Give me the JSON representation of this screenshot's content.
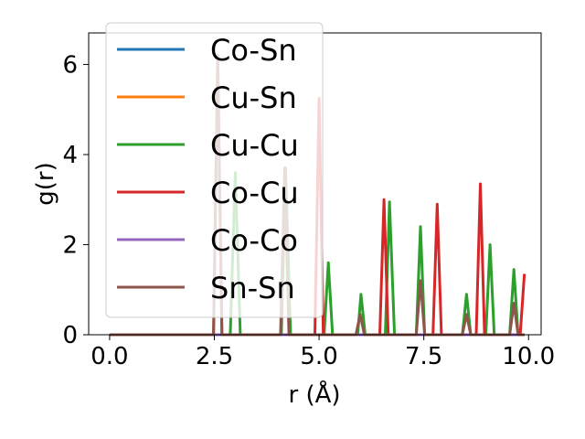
{
  "chart_data": {
    "type": "line",
    "xlabel": "r (Å)",
    "ylabel": "g(r)",
    "xlim": [
      -0.5,
      10.3
    ],
    "ylim": [
      0,
      6.7
    ],
    "xticks": [
      0.0,
      2.5,
      5.0,
      7.5,
      10.0
    ],
    "xtick_labels": [
      "0.0",
      "2.5",
      "5.0",
      "7.5",
      "10.0"
    ],
    "yticks": [
      0,
      2,
      4,
      6
    ],
    "ytick_labels": [
      "0",
      "2",
      "4",
      "6"
    ],
    "grid": false,
    "legend_placement": "upper-left",
    "series": [
      {
        "name": "Co-Sn",
        "color": "#1f77b4",
        "x": [
          0,
          9.9
        ],
        "y": [
          0,
          0
        ]
      },
      {
        "name": "Cu-Sn",
        "color": "#ff7f0e",
        "x": [
          0,
          9.9
        ],
        "y": [
          0,
          0
        ]
      },
      {
        "name": "Cu-Cu",
        "color": "#2ca02c",
        "x": [
          0,
          2.88,
          3.0,
          3.12,
          4.1,
          4.2,
          4.32,
          5.12,
          5.22,
          5.32,
          5.92,
          6.0,
          6.1,
          6.58,
          6.68,
          6.8,
          7.32,
          7.42,
          7.52,
          8.42,
          8.52,
          8.62,
          8.98,
          9.08,
          9.18,
          9.55,
          9.65,
          9.75,
          9.9
        ],
        "y": [
          0,
          0,
          3.6,
          0,
          0,
          3.7,
          0,
          0,
          1.6,
          0,
          0,
          0.9,
          0,
          0,
          2.95,
          0,
          0,
          2.4,
          0,
          0,
          0.9,
          0,
          0,
          2.0,
          0,
          0,
          1.45,
          0,
          0
        ]
      },
      {
        "name": "Co-Cu",
        "color": "#d62728",
        "x": [
          0,
          2.48,
          2.58,
          2.68,
          4.9,
          5.0,
          5.1,
          6.45,
          6.55,
          6.65,
          7.72,
          7.82,
          7.92,
          8.75,
          8.85,
          8.95,
          9.8,
          9.9
        ],
        "y": [
          0,
          0,
          6.2,
          0,
          0,
          5.25,
          0,
          0,
          3.0,
          0,
          0,
          2.9,
          0,
          0,
          3.35,
          0,
          0,
          1.35
        ]
      },
      {
        "name": "Co-Co",
        "color": "#9467bd",
        "x": [
          0,
          9.9
        ],
        "y": [
          0,
          0
        ]
      },
      {
        "name": "Sn-Sn",
        "color": "#8c564b",
        "x": [
          0,
          2.48,
          2.58,
          2.68,
          4.08,
          4.18,
          4.28,
          5.88,
          5.98,
          6.08,
          7.32,
          7.42,
          7.52,
          8.42,
          8.52,
          8.62,
          9.55,
          9.65,
          9.75,
          9.9
        ],
        "y": [
          0,
          0,
          6.2,
          0,
          0,
          3.7,
          0,
          0,
          0.45,
          0,
          0,
          1.2,
          0,
          0,
          0.45,
          0,
          0,
          0.7,
          0,
          0
        ]
      }
    ]
  }
}
